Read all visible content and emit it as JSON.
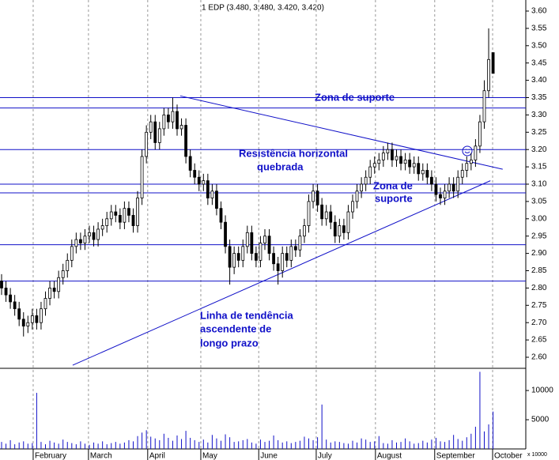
{
  "chart_data": {
    "type": "candlestick",
    "title": "1 EDP (3.480, 3.480, 3.420, 3.420)",
    "open": [
      2.82,
      2.8,
      2.78,
      2.76,
      2.74,
      2.71,
      2.69,
      2.7,
      2.72,
      2.7,
      2.74,
      2.77,
      2.8,
      2.79,
      2.83,
      2.85,
      2.88,
      2.92,
      2.94,
      2.93,
      2.95,
      2.96,
      2.94,
      2.97,
      2.98,
      3.0,
      3.02,
      3.01,
      2.99,
      3.03,
      3.01,
      2.98,
      3.06,
      3.18,
      3.25,
      3.28,
      3.22,
      3.26,
      3.3,
      3.28,
      3.31,
      3.26,
      3.27,
      3.18,
      3.14,
      3.12,
      3.1,
      3.11,
      3.06,
      3.08,
      3.03,
      2.99,
      2.92,
      2.86,
      2.9,
      2.88,
      2.92,
      2.96,
      2.9,
      2.88,
      2.93,
      2.95,
      2.9,
      2.87,
      2.85,
      2.9,
      2.88,
      2.92,
      2.91,
      2.95,
      2.98,
      3.05,
      3.08,
      3.04,
      3.0,
      3.02,
      2.99,
      2.95,
      2.98,
      2.96,
      3.02,
      3.05,
      3.08,
      3.1,
      3.12,
      3.15,
      3.16,
      3.17,
      3.19,
      3.2,
      3.17,
      3.18,
      3.16,
      3.17,
      3.15,
      3.16,
      3.13,
      3.14,
      3.12,
      3.1,
      3.07,
      3.06,
      3.08,
      3.1,
      3.08,
      3.12,
      3.14,
      3.16,
      3.17,
      3.21,
      3.28,
      3.37,
      3.48
    ],
    "high": [
      2.84,
      2.82,
      2.8,
      2.78,
      2.76,
      2.73,
      2.72,
      2.74,
      2.74,
      2.76,
      2.79,
      2.82,
      2.82,
      2.85,
      2.87,
      2.9,
      2.94,
      2.96,
      2.96,
      2.97,
      2.98,
      2.98,
      2.99,
      3.0,
      3.02,
      3.04,
      3.04,
      3.03,
      3.05,
      3.05,
      3.03,
      3.08,
      3.2,
      3.27,
      3.3,
      3.3,
      3.28,
      3.32,
      3.32,
      3.35,
      3.33,
      3.29,
      3.29,
      3.2,
      3.16,
      3.14,
      3.13,
      3.13,
      3.1,
      3.1,
      3.05,
      3.01,
      2.94,
      2.92,
      2.92,
      2.94,
      2.98,
      2.98,
      2.92,
      2.95,
      2.97,
      2.97,
      2.92,
      2.89,
      2.92,
      2.92,
      2.94,
      2.94,
      2.97,
      3.0,
      3.07,
      3.1,
      3.1,
      3.06,
      3.04,
      3.04,
      3.01,
      3.0,
      3.0,
      3.04,
      3.07,
      3.1,
      3.12,
      3.14,
      3.17,
      3.18,
      3.19,
      3.21,
      3.22,
      3.22,
      3.2,
      3.2,
      3.19,
      3.19,
      3.18,
      3.18,
      3.16,
      3.16,
      3.14,
      3.12,
      3.09,
      3.1,
      3.12,
      3.12,
      3.14,
      3.16,
      3.18,
      3.19,
      3.23,
      3.3,
      3.4,
      3.55,
      3.48
    ],
    "low": [
      2.78,
      2.76,
      2.74,
      2.72,
      2.69,
      2.66,
      2.67,
      2.68,
      2.68,
      2.68,
      2.72,
      2.75,
      2.77,
      2.77,
      2.81,
      2.83,
      2.86,
      2.9,
      2.91,
      2.91,
      2.93,
      2.92,
      2.92,
      2.95,
      2.96,
      2.98,
      2.99,
      2.97,
      2.97,
      2.99,
      2.96,
      2.96,
      3.04,
      3.16,
      3.23,
      3.2,
      3.2,
      3.24,
      3.26,
      3.26,
      3.24,
      3.24,
      3.16,
      3.12,
      3.1,
      3.08,
      3.08,
      3.04,
      3.04,
      3.01,
      2.97,
      2.9,
      2.81,
      2.84,
      2.86,
      2.86,
      2.9,
      2.88,
      2.86,
      2.86,
      2.91,
      2.88,
      2.85,
      2.81,
      2.83,
      2.86,
      2.86,
      2.89,
      2.89,
      2.93,
      2.96,
      3.03,
      3.02,
      2.98,
      2.98,
      2.97,
      2.93,
      2.93,
      2.94,
      2.94,
      3.0,
      3.03,
      3.06,
      3.08,
      3.1,
      3.13,
      3.14,
      3.15,
      3.17,
      3.15,
      3.15,
      3.14,
      3.14,
      3.13,
      3.13,
      3.11,
      3.11,
      3.1,
      3.08,
      3.05,
      3.04,
      3.04,
      3.06,
      3.06,
      3.06,
      3.1,
      3.12,
      3.14,
      3.15,
      3.19,
      3.26,
      3.35,
      3.42
    ],
    "close": [
      2.8,
      2.78,
      2.76,
      2.74,
      2.71,
      2.69,
      2.7,
      2.72,
      2.7,
      2.74,
      2.77,
      2.8,
      2.79,
      2.83,
      2.85,
      2.88,
      2.92,
      2.94,
      2.93,
      2.95,
      2.96,
      2.94,
      2.97,
      2.98,
      3.0,
      3.02,
      3.01,
      2.99,
      3.03,
      3.01,
      2.98,
      3.06,
      3.18,
      3.25,
      3.28,
      3.22,
      3.26,
      3.3,
      3.28,
      3.31,
      3.26,
      3.27,
      3.18,
      3.14,
      3.12,
      3.1,
      3.11,
      3.06,
      3.08,
      3.03,
      2.99,
      2.92,
      2.86,
      2.9,
      2.88,
      2.92,
      2.96,
      2.9,
      2.88,
      2.93,
      2.95,
      2.9,
      2.87,
      2.85,
      2.9,
      2.88,
      2.92,
      2.91,
      2.95,
      2.98,
      3.05,
      3.08,
      3.04,
      3.0,
      3.02,
      2.99,
      2.95,
      2.98,
      2.96,
      3.02,
      3.05,
      3.08,
      3.1,
      3.12,
      3.15,
      3.16,
      3.17,
      3.19,
      3.2,
      3.17,
      3.18,
      3.16,
      3.17,
      3.15,
      3.16,
      3.13,
      3.14,
      3.12,
      3.1,
      3.07,
      3.06,
      3.08,
      3.1,
      3.08,
      3.12,
      3.14,
      3.16,
      3.17,
      3.21,
      3.28,
      3.37,
      3.46,
      3.42
    ],
    "volume": [
      1200,
      900,
      1500,
      800,
      1100,
      1300,
      900,
      1000,
      9600,
      1200,
      800,
      1400,
      1100,
      900,
      1600,
      1200,
      1000,
      800,
      1300,
      900,
      700,
      1100,
      900,
      1300,
      800,
      1000,
      1200,
      900,
      1100,
      1500,
      1300,
      2200,
      2800,
      3200,
      2100,
      1800,
      1500,
      2600,
      1900,
      1400,
      2300,
      1700,
      3100,
      1900,
      1500,
      1200,
      1600,
      1100,
      2400,
      1800,
      1400,
      2500,
      2000,
      1200,
      1300,
      1500,
      1700,
      1100,
      900,
      1600,
      1200,
      1400,
      2300,
      1500,
      1100,
      1300,
      1000,
      1200,
      1400,
      2100,
      1800,
      1500,
      2000,
      7600,
      1600,
      1100,
      1300,
      1200,
      1000,
      900,
      1400,
      1100,
      1800,
      1600,
      1200,
      1300,
      2200,
      1000,
      900,
      1500,
      1100,
      1200,
      1800,
      1300,
      900,
      1000,
      1400,
      1100,
      1600,
      1900,
      1300,
      1200,
      1500,
      2400,
      1700,
      1400,
      2000,
      2600,
      3800,
      13200,
      3000,
      4200,
      6400
    ],
    "xlim": [
      -0.36,
      119.46
    ],
    "xticks": [
      {
        "value": 7.2,
        "label": "February"
      },
      {
        "value": 19.8,
        "label": "March"
      },
      {
        "value": 33.3,
        "label": "April"
      },
      {
        "value": 45.4,
        "label": "May"
      },
      {
        "value": 58.6,
        "label": "June"
      },
      {
        "value": 71.7,
        "label": "July"
      },
      {
        "value": 85.2,
        "label": "August"
      },
      {
        "value": 98.7,
        "label": "September"
      },
      {
        "value": 111.9,
        "label": "October"
      }
    ],
    "ylim": [
      2.5732,
      3.6251
    ],
    "yticks": [
      {
        "value": 2.6,
        "label": "2.60"
      },
      {
        "value": 2.65,
        "label": "2.65"
      },
      {
        "value": 2.7,
        "label": "2.70"
      },
      {
        "value": 2.75,
        "label": "2.75"
      },
      {
        "value": 2.8,
        "label": "2.80"
      },
      {
        "value": 2.85,
        "label": "2.85"
      },
      {
        "value": 2.9,
        "label": "2.90"
      },
      {
        "value": 2.95,
        "label": "2.95"
      },
      {
        "value": 3.0,
        "label": "3.00"
      },
      {
        "value": 3.05,
        "label": "3.05"
      },
      {
        "value": 3.1,
        "label": "3.10"
      },
      {
        "value": 3.15,
        "label": "3.15"
      },
      {
        "value": 3.2,
        "label": "3.20"
      },
      {
        "value": 3.25,
        "label": "3.25"
      },
      {
        "value": 3.3,
        "label": "3.30"
      },
      {
        "value": 3.35,
        "label": "3.35"
      },
      {
        "value": 3.4,
        "label": "3.40"
      },
      {
        "value": 3.45,
        "label": "3.45"
      },
      {
        "value": 3.5,
        "label": "3.50"
      },
      {
        "value": 3.55,
        "label": "3.55"
      },
      {
        "value": 3.6,
        "label": "3.60"
      }
    ],
    "volume_lim": [
      0,
      13800
    ],
    "volume_ticks": [
      5000,
      10000
    ],
    "volume_unit": "x 10000",
    "hlines": [
      3.35,
      3.32,
      3.2,
      3.1,
      3.075,
      2.925,
      2.82
    ],
    "trendlines": [
      {
        "x": [
          40.7,
          114.2
        ],
        "y": [
          3.355,
          3.143
        ]
      },
      {
        "x": [
          16.2,
          111.4
        ],
        "y": [
          2.577,
          3.11
        ]
      }
    ],
    "annotations": [
      {
        "lines": [
          "Zona de suporte"
        ]
      },
      {
        "lines": [
          "Resistência horizontal",
          "quebrada"
        ]
      },
      {
        "lines": [
          "Zona de",
          "suporte"
        ]
      },
      {
        "lines": [
          "Linha de tendência",
          "ascendente de",
          "longo prazo"
        ]
      }
    ],
    "colors": {
      "line": "#1010c8",
      "candle": "#000000"
    }
  }
}
